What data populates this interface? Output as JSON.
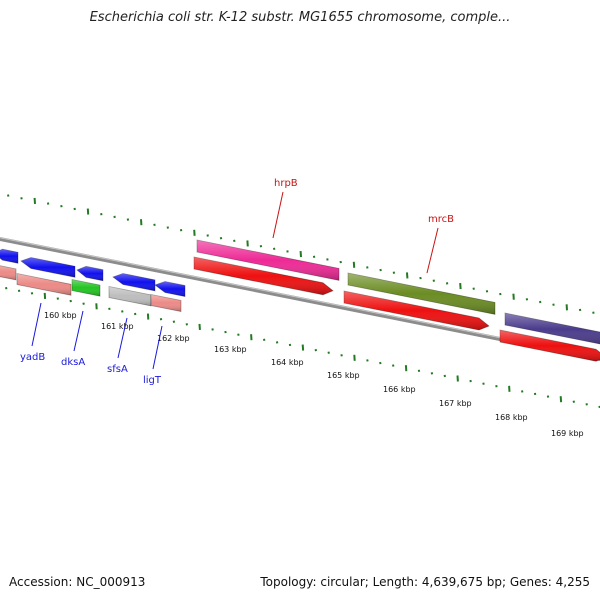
{
  "header": {
    "title": "Escherichia coli str. K-12 substr. MG1655 chromosome, comple..."
  },
  "footer": {
    "accession": "Accession: NC_000913",
    "topology": "Topology: circular; Length: 4,639,675 bp; Genes: 4,255"
  },
  "colors": {
    "gene_blue": "#1010ee",
    "gene_magenta": "#ee2a96",
    "gene_olive": "#6b8c23",
    "gene_purple": "#4b3c8c",
    "gene_green": "#23c423",
    "gene_gray": "#bdbdbd",
    "cds_red": "#ee1010",
    "cds_salmon": "#ec8a86",
    "tick_green": "#237a23",
    "label_blue": "#1a1adc",
    "label_red": "#c81414"
  },
  "scale_labels": [
    "160 kbp",
    "161 kbp",
    "162 kbp",
    "163 kbp",
    "164 kbp",
    "165 kbp",
    "166 kbp",
    "167 kbp",
    "168 kbp",
    "169 kbp"
  ],
  "gene_labels": [
    {
      "name": "yadB",
      "strand": "minus"
    },
    {
      "name": "dksA",
      "strand": "minus"
    },
    {
      "name": "sfsA",
      "strand": "minus"
    },
    {
      "name": "ligT",
      "strand": "minus"
    },
    {
      "name": "hrpB",
      "strand": "plus"
    },
    {
      "name": "mrcB",
      "strand": "plus"
    }
  ]
}
